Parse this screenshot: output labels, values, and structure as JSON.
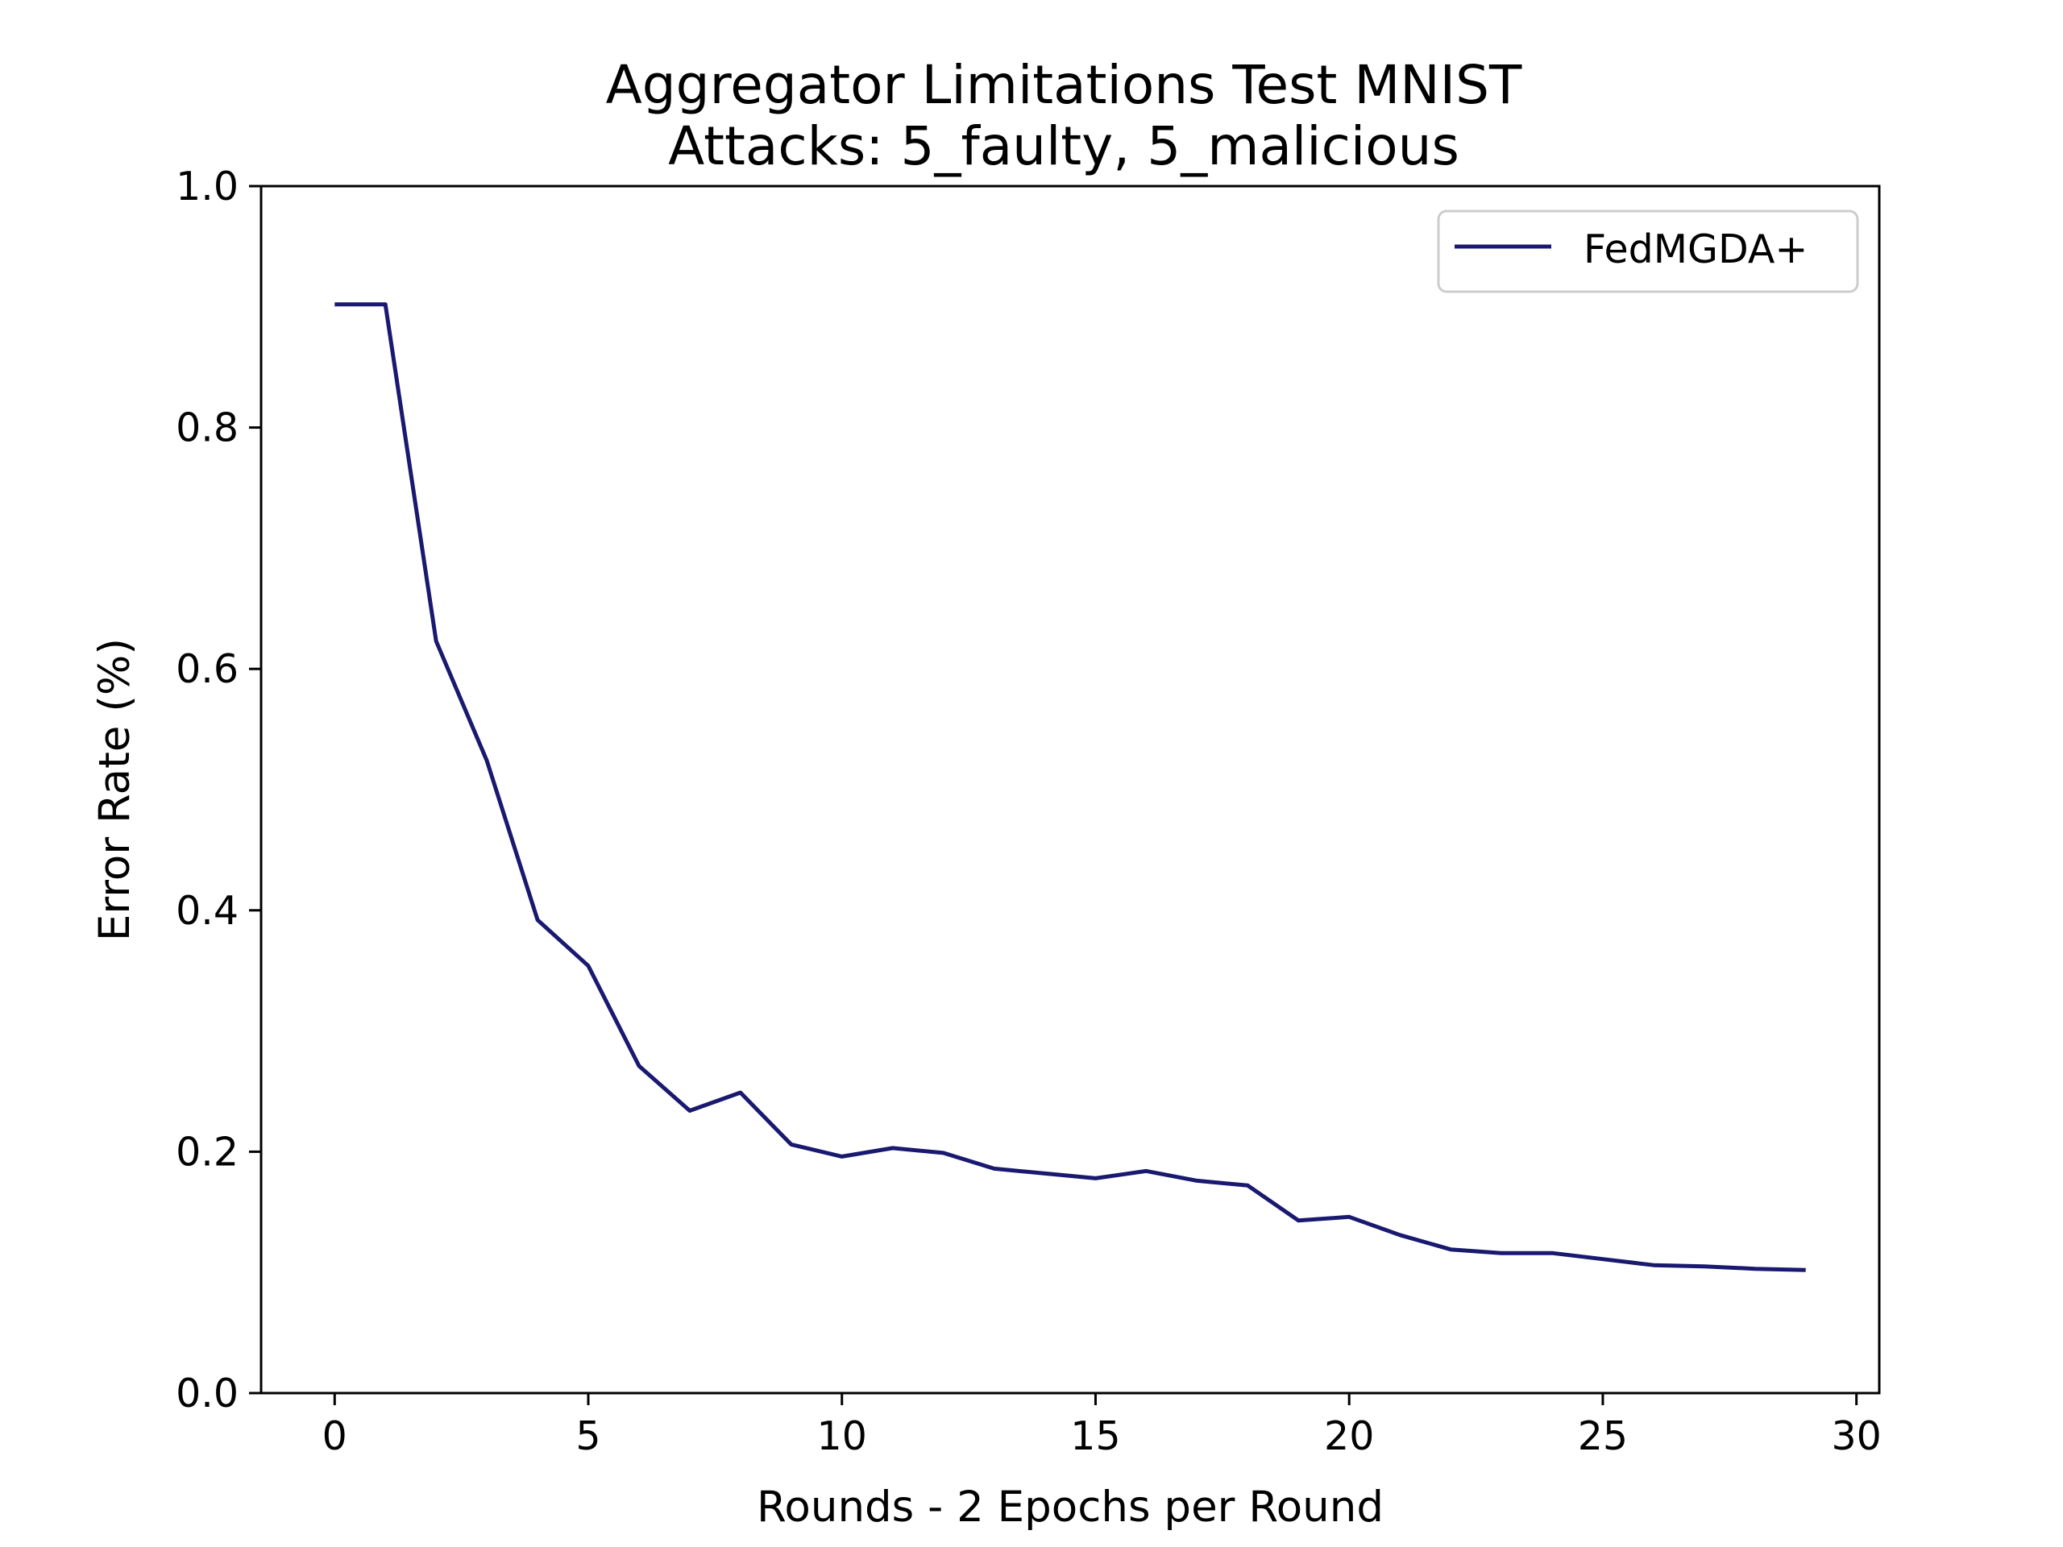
{
  "chart_data": {
    "type": "line",
    "title": "Aggregator Limitations Test MNIST",
    "subtitle": "Attacks: 5_faulty, 5_malicious",
    "xlabel": "Rounds - 2 Epochs per Round",
    "ylabel": "Error Rate (%)",
    "xlim": [
      -1.45,
      30.45
    ],
    "ylim": [
      0.0,
      1.0
    ],
    "xticks": [
      0,
      5,
      10,
      15,
      20,
      25,
      30
    ],
    "xtick_labels": [
      "0",
      "5",
      "10",
      "15",
      "20",
      "25",
      "30"
    ],
    "yticks": [
      0.0,
      0.2,
      0.4,
      0.6,
      0.8,
      1.0
    ],
    "ytick_labels": [
      "0.0",
      "0.2",
      "0.4",
      "0.6",
      "0.8",
      "1.0"
    ],
    "grid": false,
    "legend_position": "upper-right",
    "series": [
      {
        "name": "FedMGDA+",
        "color": "#191970",
        "x": [
          0,
          1,
          2,
          3,
          4,
          5,
          6,
          7,
          8,
          9,
          10,
          11,
          12,
          13,
          14,
          15,
          16,
          17,
          18,
          19,
          20,
          21,
          22,
          23,
          24,
          25,
          26,
          27,
          28,
          29
        ],
        "y": [
          0.902,
          0.902,
          0.623,
          0.524,
          0.392,
          0.354,
          0.271,
          0.234,
          0.249,
          0.206,
          0.196,
          0.203,
          0.199,
          0.186,
          0.182,
          0.178,
          0.184,
          0.176,
          0.172,
          0.143,
          0.146,
          0.131,
          0.119,
          0.116,
          0.116,
          0.111,
          0.106,
          0.105,
          0.103,
          0.102
        ]
      }
    ]
  }
}
